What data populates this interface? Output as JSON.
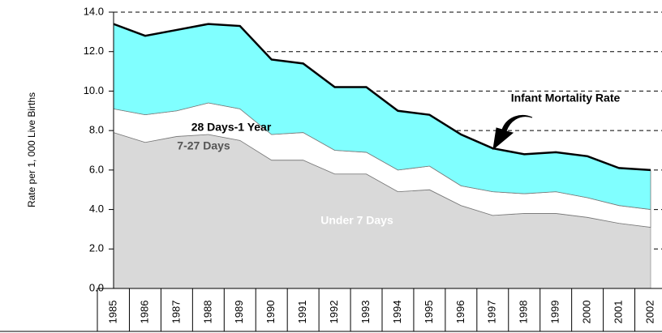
{
  "chart_data": {
    "type": "stacked_area",
    "y_label": "Rate per 1, 000 Live Births",
    "categories": [
      "1985",
      "1986",
      "1987",
      "1988",
      "1989",
      "1990",
      "1991",
      "1992",
      "1993",
      "1994",
      "1995",
      "1996",
      "1997",
      "1998",
      "1999",
      "2000",
      "2001",
      "2002"
    ],
    "series": [
      {
        "name": "Under 7 Days",
        "color": "#d9d9d9",
        "values": [
          7.9,
          7.4,
          7.7,
          7.8,
          7.5,
          6.5,
          6.5,
          5.8,
          5.8,
          4.9,
          5.0,
          4.2,
          3.7,
          3.8,
          3.8,
          3.6,
          3.3,
          3.1
        ]
      },
      {
        "name": "7-27 Days",
        "color": "#ffffff",
        "values": [
          1.2,
          1.4,
          1.3,
          1.6,
          1.6,
          1.3,
          1.4,
          1.2,
          1.1,
          1.1,
          1.2,
          1.0,
          1.2,
          1.0,
          1.1,
          1.0,
          0.9,
          0.9
        ]
      },
      {
        "name": "28 Days-1 Year",
        "color": "#80ffff",
        "values": [
          4.3,
          4.0,
          4.1,
          4.0,
          4.2,
          3.8,
          3.5,
          3.2,
          3.3,
          3.0,
          2.6,
          2.6,
          2.2,
          2.0,
          2.0,
          2.1,
          1.9,
          2.0
        ]
      }
    ],
    "annotation": "Infant  Mortality Rate",
    "ylim": [
      0,
      14
    ],
    "yticks": [
      {
        "value": 0,
        "label": "0.0"
      },
      {
        "value": 2,
        "label": "2.0"
      },
      {
        "value": 4,
        "label": "4.0"
      },
      {
        "value": 6,
        "label": "6.0"
      },
      {
        "value": 8,
        "label": "8.0"
      },
      {
        "value": 10,
        "label": "10.0"
      },
      {
        "value": 12,
        "label": "12.0"
      },
      {
        "value": 14,
        "label": "14.0"
      }
    ],
    "grid": true
  }
}
